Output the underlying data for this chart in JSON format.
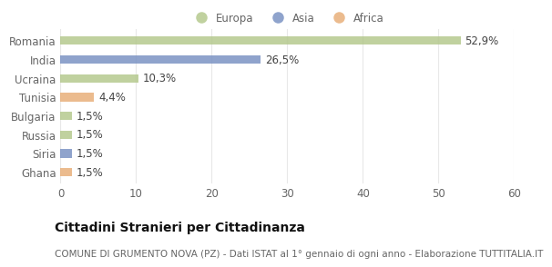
{
  "categories": [
    "Romania",
    "India",
    "Ucraina",
    "Tunisia",
    "Bulgaria",
    "Russia",
    "Siria",
    "Ghana"
  ],
  "values": [
    52.9,
    26.5,
    10.3,
    4.4,
    1.5,
    1.5,
    1.5,
    1.5
  ],
  "labels": [
    "52,9%",
    "26,5%",
    "10,3%",
    "4,4%",
    "1,5%",
    "1,5%",
    "1,5%",
    "1,5%"
  ],
  "colors": [
    "#b5c98e",
    "#7b93c4",
    "#b5c98e",
    "#e8b07a",
    "#b5c98e",
    "#b5c98e",
    "#7b93c4",
    "#e8b07a"
  ],
  "legend": [
    {
      "label": "Europa",
      "color": "#b5c98e"
    },
    {
      "label": "Asia",
      "color": "#7b93c4"
    },
    {
      "label": "Africa",
      "color": "#e8b07a"
    }
  ],
  "xlim": [
    0,
    60
  ],
  "xticks": [
    0,
    10,
    20,
    30,
    40,
    50,
    60
  ],
  "title": "Cittadini Stranieri per Cittadinanza",
  "subtitle": "COMUNE DI GRUMENTO NOVA (PZ) - Dati ISTAT al 1° gennaio di ogni anno - Elaborazione TUTTITALIA.IT",
  "background_color": "#ffffff",
  "plot_bg_color": "#f5f5f5",
  "bar_height": 0.45,
  "grid_color": "#e8e8e8",
  "title_fontsize": 10,
  "subtitle_fontsize": 7.5,
  "label_fontsize": 8.5,
  "tick_fontsize": 8.5,
  "label_color": "#444444",
  "tick_color": "#666666"
}
